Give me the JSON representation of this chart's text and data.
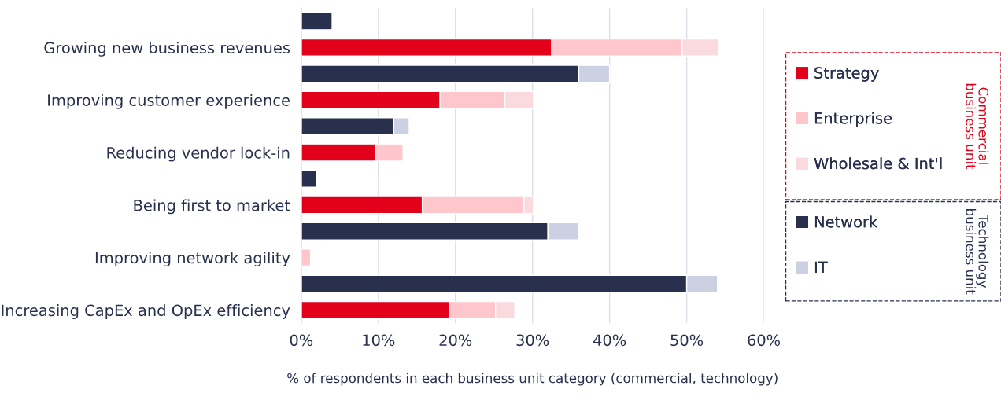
{
  "chart_data": {
    "type": "bar",
    "orientation": "horizontal",
    "stacked": true,
    "categories": [
      null,
      "Growing new business revenues",
      null,
      "Improving customer experience",
      null,
      "Reducing vendor lock-in",
      null,
      "Being first to market",
      null,
      "Improving network agility",
      null,
      "Increasing CapEx and OpEx efficiency"
    ],
    "series": [
      {
        "name": "Strategy",
        "color": "#e2001a",
        "values": [
          null,
          32.5,
          null,
          18.0,
          null,
          9.6,
          null,
          15.7,
          null,
          null,
          null,
          19.2
        ]
      },
      {
        "name": "Enterprise",
        "color": "#ffc6cc",
        "values": [
          null,
          16.9,
          null,
          8.4,
          null,
          3.6,
          null,
          13.2,
          null,
          1.2,
          null,
          6.0
        ]
      },
      {
        "name": "Wholesale & Int'l",
        "color": "#fadadd",
        "values": [
          null,
          4.8,
          null,
          3.7,
          null,
          null,
          null,
          1.2,
          null,
          null,
          null,
          2.5
        ]
      },
      {
        "name": "Network",
        "color": "#28304d",
        "values": [
          4.0,
          null,
          36.0,
          null,
          12.0,
          null,
          2.0,
          null,
          32.0,
          null,
          50.0,
          null
        ]
      },
      {
        "name": "IT",
        "color": "#ccd0e3",
        "values": [
          null,
          null,
          4.0,
          null,
          2.0,
          null,
          null,
          null,
          4.0,
          null,
          4.0,
          null
        ]
      }
    ],
    "annotations": [
      "Commercial\nbusiness unit",
      "Technology\nbusiness unit"
    ],
    "xlabel": "% of respondents in each business unit category (commercial, technology)",
    "xlim": [
      0,
      60
    ],
    "xticks": [
      {
        "value": 0,
        "label": "0%"
      },
      {
        "value": 10,
        "label": "10%"
      },
      {
        "value": 20,
        "label": "20%"
      },
      {
        "value": 30,
        "label": "30%"
      },
      {
        "value": 40,
        "label": "40%"
      },
      {
        "value": 50,
        "label": "50%"
      },
      {
        "value": 60,
        "label": "60%"
      }
    ],
    "grid": "x",
    "legend": "right"
  }
}
